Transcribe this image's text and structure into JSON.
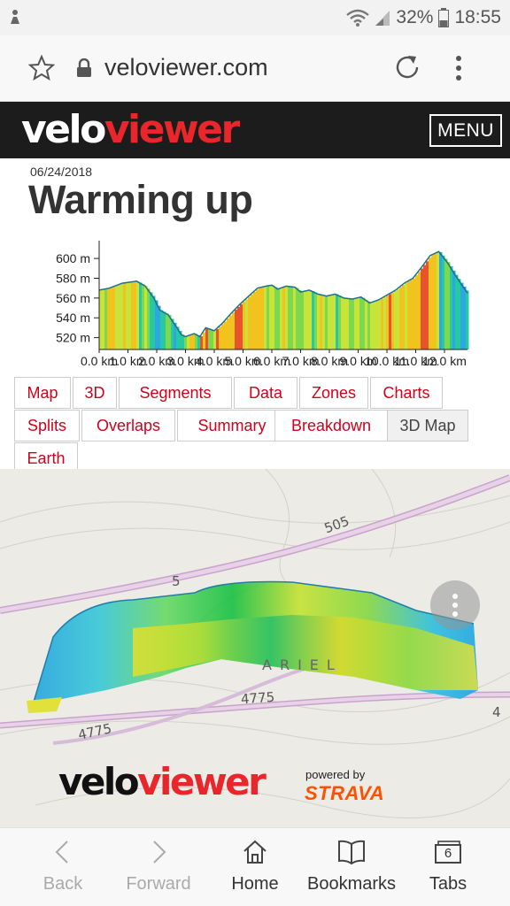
{
  "status_bar": {
    "battery_percent": "32%",
    "time": "18:55"
  },
  "browser": {
    "url": "veloviewer.com"
  },
  "site": {
    "logo_velo": "velo",
    "logo_viewer": "viewer",
    "menu_label": "MENU"
  },
  "activity": {
    "date": "06/24/2018",
    "title": "Warming up"
  },
  "chart_data": {
    "type": "area",
    "title": "",
    "xlabel": "",
    "ylabel": "",
    "y_unit": "m",
    "x_unit": "km",
    "xlim": [
      0,
      12.8
    ],
    "ylim": [
      508,
      618
    ],
    "y_ticks": [
      520,
      540,
      560,
      580,
      600
    ],
    "y_tick_labels": [
      "520 m",
      "540 m",
      "560 m",
      "580 m",
      "600 m"
    ],
    "x_ticks": [
      0,
      1,
      2,
      3,
      4,
      5,
      6,
      7,
      8,
      9,
      10,
      11,
      12
    ],
    "x_tick_labels": [
      "0.0 km",
      "1.0 km",
      "2.0 km",
      "3.0 km",
      "4.0 km",
      "5.0 km",
      "6.0 km",
      "7.0 km",
      "8.0 km",
      "9.0 km",
      "10.0 km",
      "11.0 km",
      "12.0 km"
    ],
    "x": [
      0,
      0.35,
      0.8,
      1.3,
      1.6,
      1.9,
      2.1,
      2.4,
      2.7,
      2.85,
      3.0,
      3.3,
      3.5,
      3.7,
      4.0,
      4.3,
      4.6,
      4.9,
      5.2,
      5.5,
      5.8,
      6.0,
      6.2,
      6.5,
      6.8,
      7.0,
      7.3,
      7.6,
      7.9,
      8.2,
      8.5,
      8.8,
      9.1,
      9.4,
      9.7,
      10.0,
      10.3,
      10.6,
      10.9,
      11.2,
      11.5,
      11.8,
      12.1,
      12.4,
      12.8
    ],
    "y": [
      568,
      570,
      575,
      577,
      572,
      560,
      548,
      543,
      530,
      523,
      521,
      524,
      521,
      530,
      527,
      535,
      545,
      554,
      562,
      570,
      572,
      573,
      569,
      572,
      571,
      566,
      568,
      564,
      562,
      564,
      560,
      559,
      561,
      555,
      558,
      563,
      568,
      575,
      580,
      591,
      603,
      607,
      596,
      582,
      565
    ],
    "gradient_colors": [
      "#2da7e0",
      "#27c9a0",
      "#7bd84f",
      "#c8e33a",
      "#f2c21f",
      "#e8542a"
    ]
  },
  "tabs": {
    "row1": [
      "Map",
      "3D",
      "Segments",
      "Data",
      "Zones",
      "Charts"
    ],
    "row2": [
      "Splits",
      "Overlaps",
      "Summary",
      "Breakdown",
      "3D Map"
    ],
    "row3": [
      "Earth"
    ],
    "active": "3D Map"
  },
  "map": {
    "road_labels": [
      "505",
      "5",
      "4775",
      "4775",
      "4"
    ],
    "town_label": "ARIEL",
    "powered_by": "powered by",
    "strava": "STRAVA",
    "logo_velo": "velo",
    "logo_viewer": "viewer"
  },
  "bottom_nav": {
    "back": "Back",
    "forward": "Forward",
    "home": "Home",
    "bookmarks": "Bookmarks",
    "tabs": "Tabs",
    "tab_count": "6"
  }
}
